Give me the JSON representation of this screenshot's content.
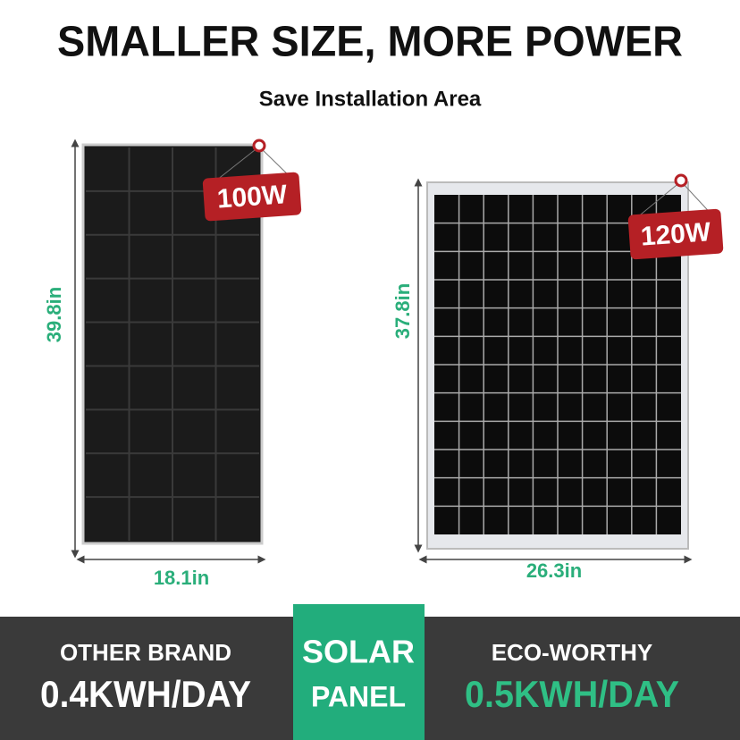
{
  "header": {
    "title": "SMALLER SIZE, MORE POWER",
    "subtitle": "Save Installation Area"
  },
  "panels": [
    {
      "power": "100W",
      "height": "39.8in",
      "width": "18.1in"
    },
    {
      "power": "120W",
      "height": "37.8in",
      "width": "26.3in"
    }
  ],
  "footer": {
    "left": {
      "label": "OTHER BRAND",
      "value": "0.4KWH/DAY"
    },
    "center": {
      "line1": "SOLAR",
      "line2": "PANEL"
    },
    "right": {
      "label": "ECO-WORTHY",
      "value": "0.5KWH/DAY"
    }
  }
}
